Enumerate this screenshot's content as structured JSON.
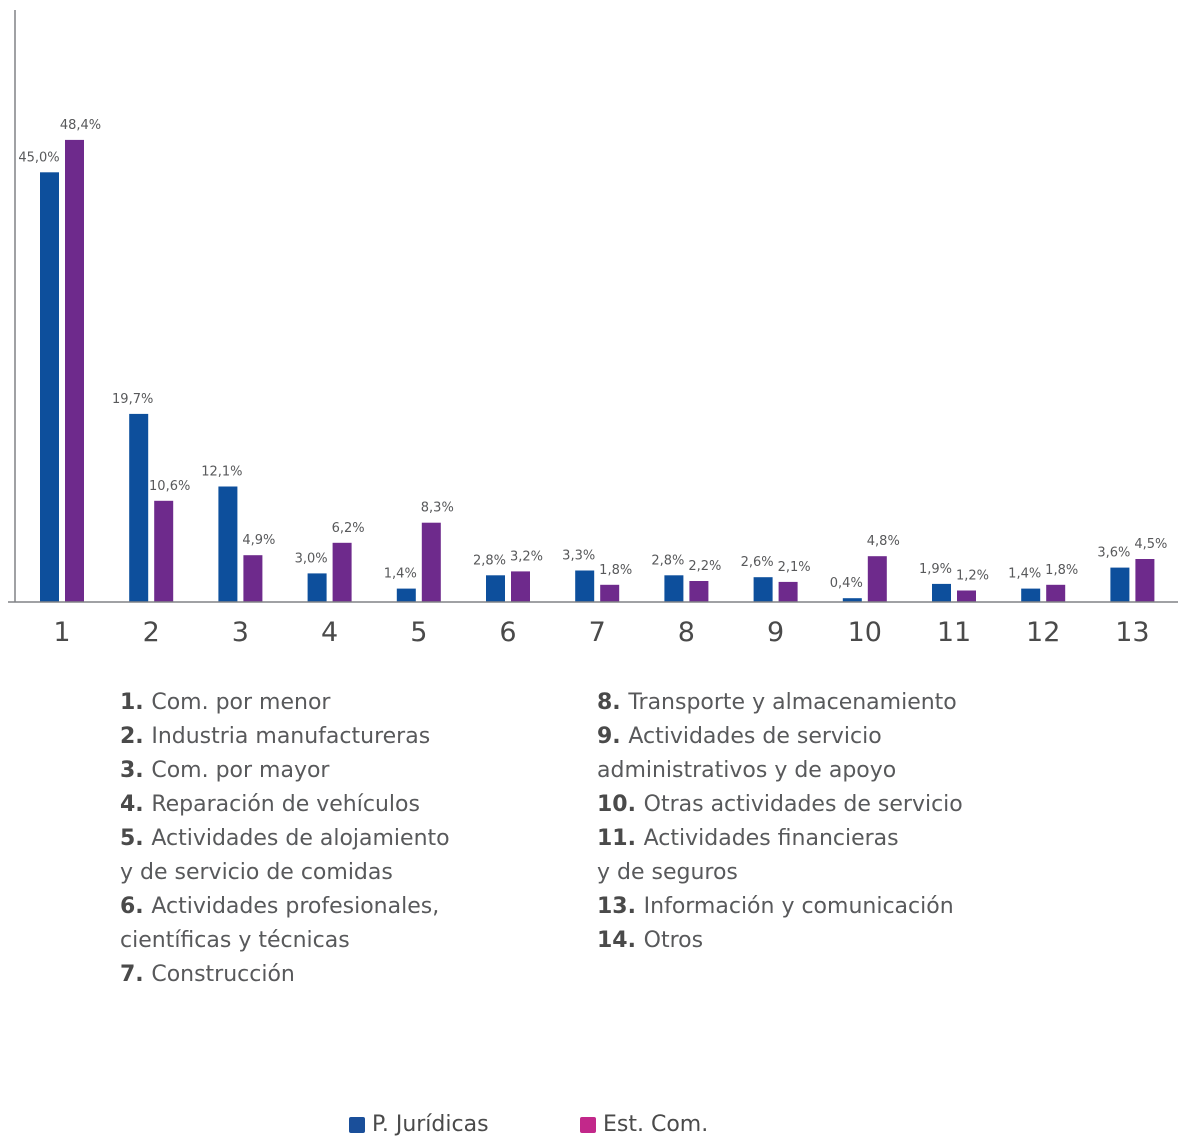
{
  "chart_data": {
    "type": "bar",
    "categories": [
      "1",
      "2",
      "3",
      "4",
      "5",
      "6",
      "7",
      "8",
      "9",
      "10",
      "11",
      "12",
      "13"
    ],
    "series": [
      {
        "name": "P. Jurídicas",
        "color": "#0d4f9c",
        "values": [
          45.0,
          19.7,
          12.1,
          3.0,
          1.4,
          2.8,
          3.3,
          2.8,
          2.6,
          0.4,
          1.9,
          1.4,
          3.6
        ],
        "labels": [
          "45,0%",
          "19,7%",
          "12,1%",
          "3,0%",
          "1,4%",
          "2,8%",
          "3,3%",
          "2,8%",
          "2,6%",
          "0,4%",
          "1,9%",
          "1,4%",
          "3,6%"
        ]
      },
      {
        "name": "Est. Com.",
        "color": "#6e2a8c",
        "values": [
          48.4,
          10.6,
          4.9,
          6.2,
          8.3,
          3.2,
          1.8,
          2.2,
          2.1,
          4.8,
          1.2,
          1.8,
          4.5
        ],
        "labels": [
          "48,4%",
          "10,6%",
          "4,9%",
          "6,2%",
          "8,3%",
          "3,2%",
          "1,8%",
          "2,2%",
          "2,1%",
          "4,8%",
          "1,2%",
          "1,8%",
          "4,5%"
        ]
      }
    ],
    "ylim": [
      0,
      62
    ],
    "grid": false,
    "legend_position": "bottom"
  },
  "category_key": {
    "left": [
      {
        "num": "1.",
        "text": "Com. por menor"
      },
      {
        "num": "2.",
        "text": "Industria manufactureras"
      },
      {
        "num": "3.",
        "text": "Com. por mayor"
      },
      {
        "num": "4.",
        "text": "Reparación de vehículos"
      },
      {
        "num": "5.",
        "text": "Actividades de alojamiento"
      },
      {
        "num": "",
        "text": "y de servicio de comidas"
      },
      {
        "num": "6.",
        "text": "Actividades profesionales,"
      },
      {
        "num": "",
        "text": "científicas y técnicas"
      },
      {
        "num": "7.",
        "text": "Construcción"
      }
    ],
    "right": [
      {
        "num": "8.",
        "text": "Transporte y almacenamiento"
      },
      {
        "num": "9.",
        "text": "Actividades de servicio"
      },
      {
        "num": "",
        "text": "administrativos y de apoyo"
      },
      {
        "num": "10.",
        "text": "Otras actividades de servicio"
      },
      {
        "num": "11.",
        "text": "Actividades financieras"
      },
      {
        "num": "",
        "text": "y de seguros"
      },
      {
        "num": "13.",
        "text": "Información y comunicación"
      },
      {
        "num": "14.",
        "text": "Otros"
      }
    ]
  },
  "legend": {
    "series1_label": "P. Jurídicas",
    "series1_color": "#1a4f9a",
    "series2_label": "Est. Com.",
    "series2_color": "#c2288a"
  },
  "colors": {
    "axis": "#808285",
    "text": "#58595b"
  }
}
